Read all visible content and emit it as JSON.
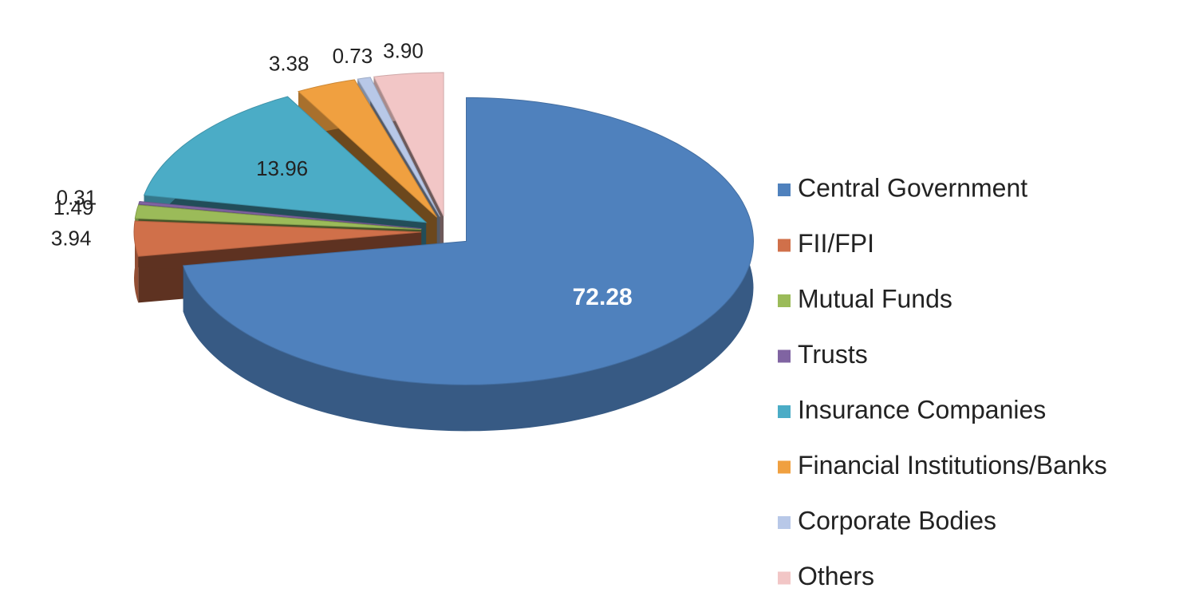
{
  "chart_data": {
    "type": "pie",
    "categories": [
      "Central Government",
      "FII/FPI",
      "Mutual Funds",
      "Trusts",
      "Insurance Companies",
      "Financial Institutions/Banks",
      "Corporate Bodies",
      "Others"
    ],
    "values": [
      72.28,
      3.94,
      1.49,
      0.31,
      13.96,
      3.38,
      0.73,
      3.9
    ],
    "value_labels": [
      "72.28",
      "3.94",
      "1.49",
      "0.31",
      "13.96",
      "3.38",
      "0.73",
      "3.90"
    ],
    "colors": [
      "#4f81bd",
      "#d0704a",
      "#9bbb59",
      "#8064a2",
      "#4bacc6",
      "#f0a040",
      "#b8c8e8",
      "#f2c6c6"
    ],
    "legend": "right"
  }
}
